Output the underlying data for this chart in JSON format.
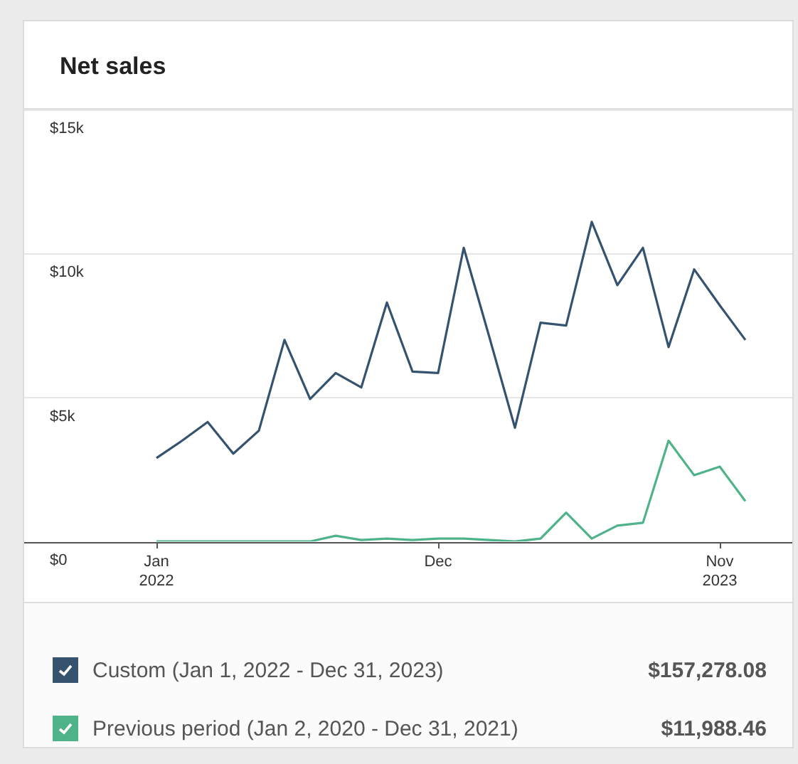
{
  "chart_data": {
    "type": "line",
    "title": "Net sales",
    "categories": [
      "Jan 2022",
      null,
      null,
      null,
      null,
      null,
      null,
      null,
      null,
      null,
      null,
      "Dec",
      null,
      null,
      null,
      null,
      null,
      null,
      null,
      null,
      null,
      null,
      "Nov 2023",
      null
    ],
    "series": [
      {
        "name": "Custom (Jan 1, 2022 - Dec 31, 2023)",
        "color": "#35536e",
        "values": [
          2900,
          3500,
          4150,
          3050,
          3850,
          7000,
          4950,
          5850,
          5350,
          8300,
          5900,
          5850,
          10200,
          7100,
          3950,
          7600,
          7500,
          11100,
          8900,
          10200,
          6750,
          9450,
          8200,
          7000
        ]
      },
      {
        "name": "Previous period (Jan 2, 2020 - Dec 31, 2021)",
        "color": "#4fb389",
        "values": [
          0,
          0,
          0,
          0,
          0,
          0,
          0,
          200,
          50,
          100,
          50,
          100,
          100,
          50,
          0,
          100,
          1000,
          100,
          550,
          650,
          3500,
          2300,
          2600,
          1400
        ]
      }
    ],
    "ylim": [
      0,
      15000
    ],
    "yticks": [
      {
        "value": 0,
        "label": "$0"
      },
      {
        "value": 5000,
        "label": "$5k"
      },
      {
        "value": 10000,
        "label": "$10k"
      },
      {
        "value": 15000,
        "label": "$15k"
      }
    ],
    "grid": "y",
    "legend": "bottom",
    "marker": "none",
    "line_style": "solid",
    "annotations": [
      "$157,278.08",
      "$11,988.46"
    ]
  }
}
